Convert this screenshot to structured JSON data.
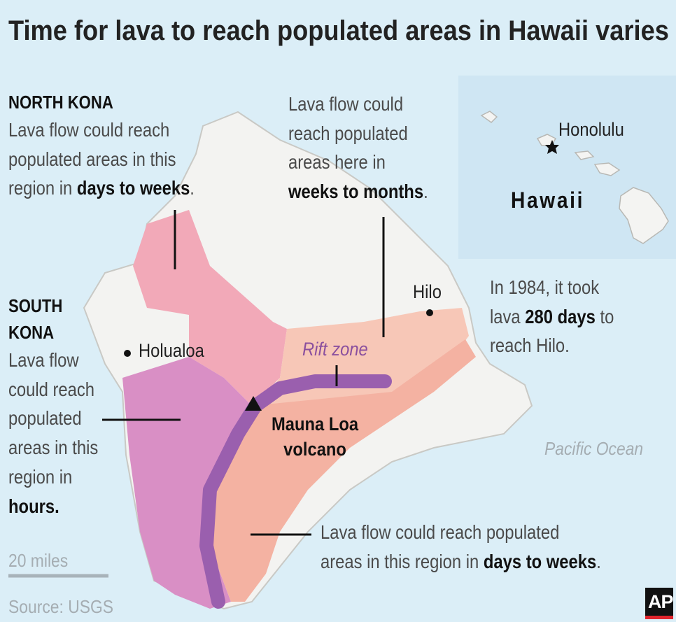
{
  "title": "Time for lava to reach populated areas in Hawaii varies",
  "annotations": [
    {
      "heading": [
        "NORTH KONA"
      ],
      "lines": [
        [
          {
            "text": "Lava flow could reach"
          }
        ],
        [
          {
            "text": "populated areas in this"
          }
        ],
        [
          {
            "text": "region in "
          },
          {
            "text": "days to weeks",
            "bold": true
          },
          {
            "text": "."
          }
        ]
      ]
    },
    {
      "heading": [
        "SOUTH",
        "KONA"
      ],
      "lines": [
        [
          {
            "text": "Lava flow"
          }
        ],
        [
          {
            "text": "could reach"
          }
        ],
        [
          {
            "text": "populated"
          }
        ],
        [
          {
            "text": "areas in this"
          }
        ],
        [
          {
            "text": "region in"
          }
        ],
        [
          {
            "text": "hours.",
            "bold": true
          }
        ]
      ]
    },
    {
      "lines": [
        [
          {
            "text": "Lava flow could"
          }
        ],
        [
          {
            "text": "reach populated"
          }
        ],
        [
          {
            "text": "areas here in"
          }
        ],
        [
          {
            "text": "weeks to months",
            "bold": true
          },
          {
            "text": "."
          }
        ]
      ]
    },
    {
      "lines": [
        [
          {
            "text": "In 1984, it took"
          }
        ],
        [
          {
            "text": "lava "
          },
          {
            "text": "280 days",
            "bold": true
          },
          {
            "text": " to"
          }
        ],
        [
          {
            "text": "reach Hilo."
          }
        ]
      ]
    },
    {
      "lines": [
        [
          {
            "text": "Lava flow could reach populated"
          }
        ],
        [
          {
            "text": "areas in this region in "
          },
          {
            "text": "days to weeks",
            "bold": true
          },
          {
            "text": "."
          }
        ]
      ]
    }
  ],
  "labels": {
    "holualoa": "Holualoa",
    "hilo": "Hilo",
    "rift_zone": "Rift zone",
    "mauna_loa": [
      "Mauna Loa",
      "volcano"
    ],
    "pacific_ocean": "Pacific Ocean",
    "honolulu": "Honolulu",
    "hawaii": "Hawaii"
  },
  "scale": "20 miles",
  "source": "Source: USGS",
  "logo": "AP"
}
